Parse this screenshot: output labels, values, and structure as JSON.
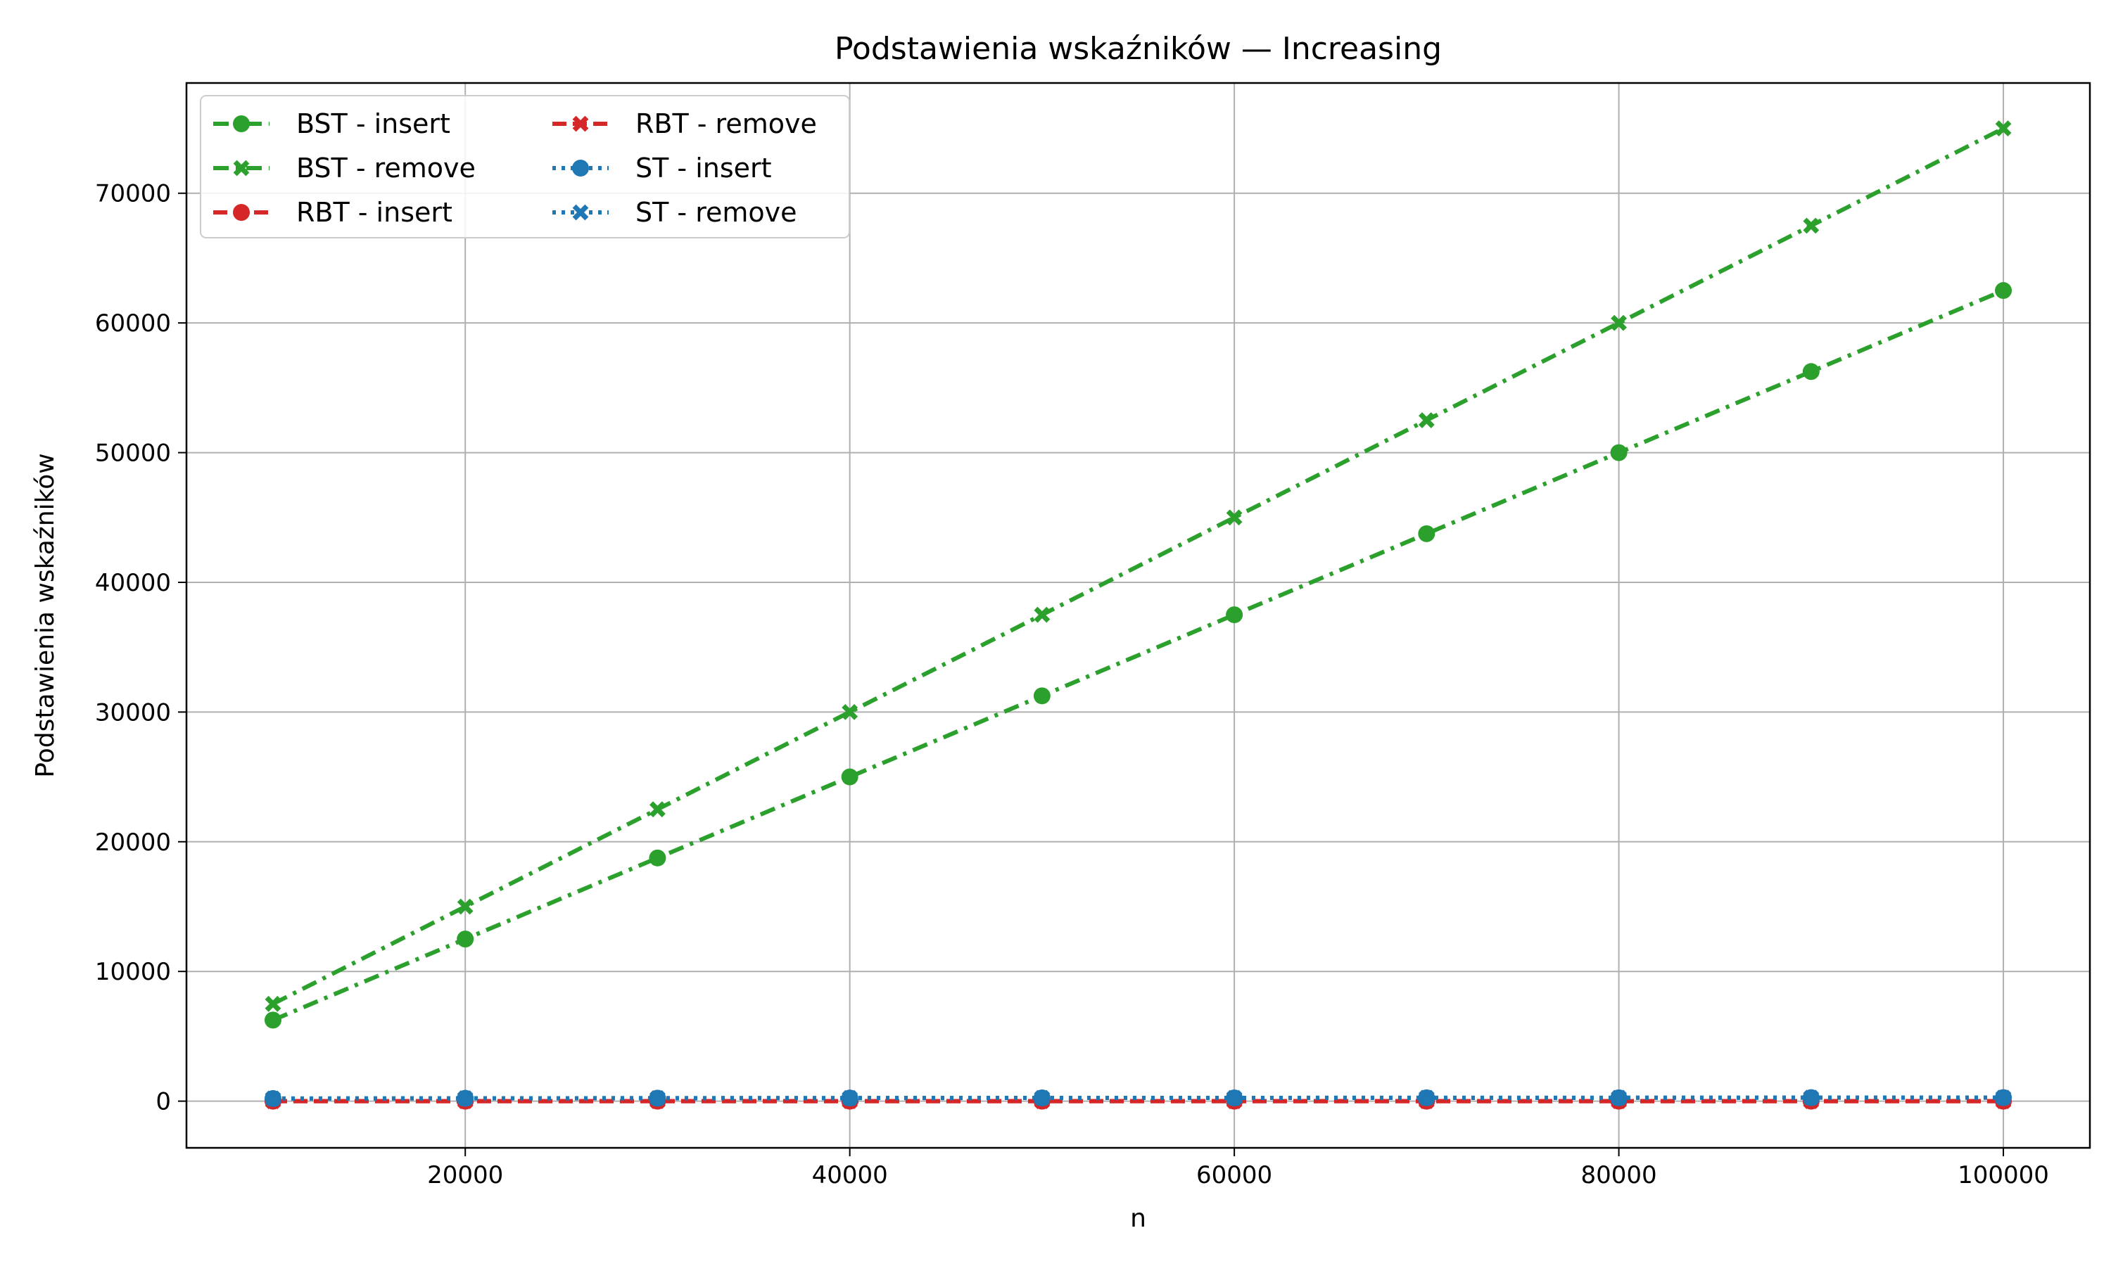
{
  "chart_data": {
    "type": "line",
    "title": "Podstawienia wskaźników — Increasing",
    "xlabel": "n",
    "ylabel": "Podstawienia wskaźników",
    "x": [
      10000,
      20000,
      30000,
      40000,
      50000,
      60000,
      70000,
      80000,
      90000,
      100000
    ],
    "xlim": [
      5500,
      104500
    ],
    "ylim": [
      -3600,
      78500
    ],
    "xticks": [
      20000,
      40000,
      60000,
      80000,
      100000
    ],
    "yticks": [
      0,
      10000,
      20000,
      30000,
      40000,
      50000,
      60000,
      70000
    ],
    "grid": true,
    "legend_position": "top-left",
    "legend_columns": 2,
    "series": [
      {
        "name": "BST - insert",
        "color": "#2ca02c",
        "linestyle": "dashdot",
        "marker": "circle",
        "values": [
          6250,
          12500,
          18750,
          25000,
          31250,
          37500,
          43750,
          50000,
          56250,
          62500
        ]
      },
      {
        "name": "BST - remove",
        "color": "#2ca02c",
        "linestyle": "dashdot",
        "marker": "x",
        "values": [
          7500,
          15000,
          22500,
          30000,
          37500,
          45000,
          52500,
          60000,
          67500,
          75000
        ]
      },
      {
        "name": "RBT - insert",
        "color": "#d62728",
        "linestyle": "dashed",
        "marker": "circle",
        "values": [
          0,
          0,
          0,
          0,
          0,
          0,
          0,
          0,
          0,
          0
        ]
      },
      {
        "name": "RBT - remove",
        "color": "#d62728",
        "linestyle": "dashed",
        "marker": "x",
        "values": [
          0,
          0,
          0,
          0,
          0,
          0,
          0,
          0,
          0,
          0
        ]
      },
      {
        "name": "ST - insert",
        "color": "#1f77b4",
        "linestyle": "dotted",
        "marker": "circle",
        "values": [
          200,
          220,
          230,
          240,
          250,
          250,
          260,
          260,
          270,
          270
        ]
      },
      {
        "name": "ST - remove",
        "color": "#1f77b4",
        "linestyle": "dotted",
        "marker": "x",
        "values": [
          200,
          220,
          230,
          240,
          250,
          250,
          260,
          260,
          270,
          270
        ]
      }
    ]
  }
}
